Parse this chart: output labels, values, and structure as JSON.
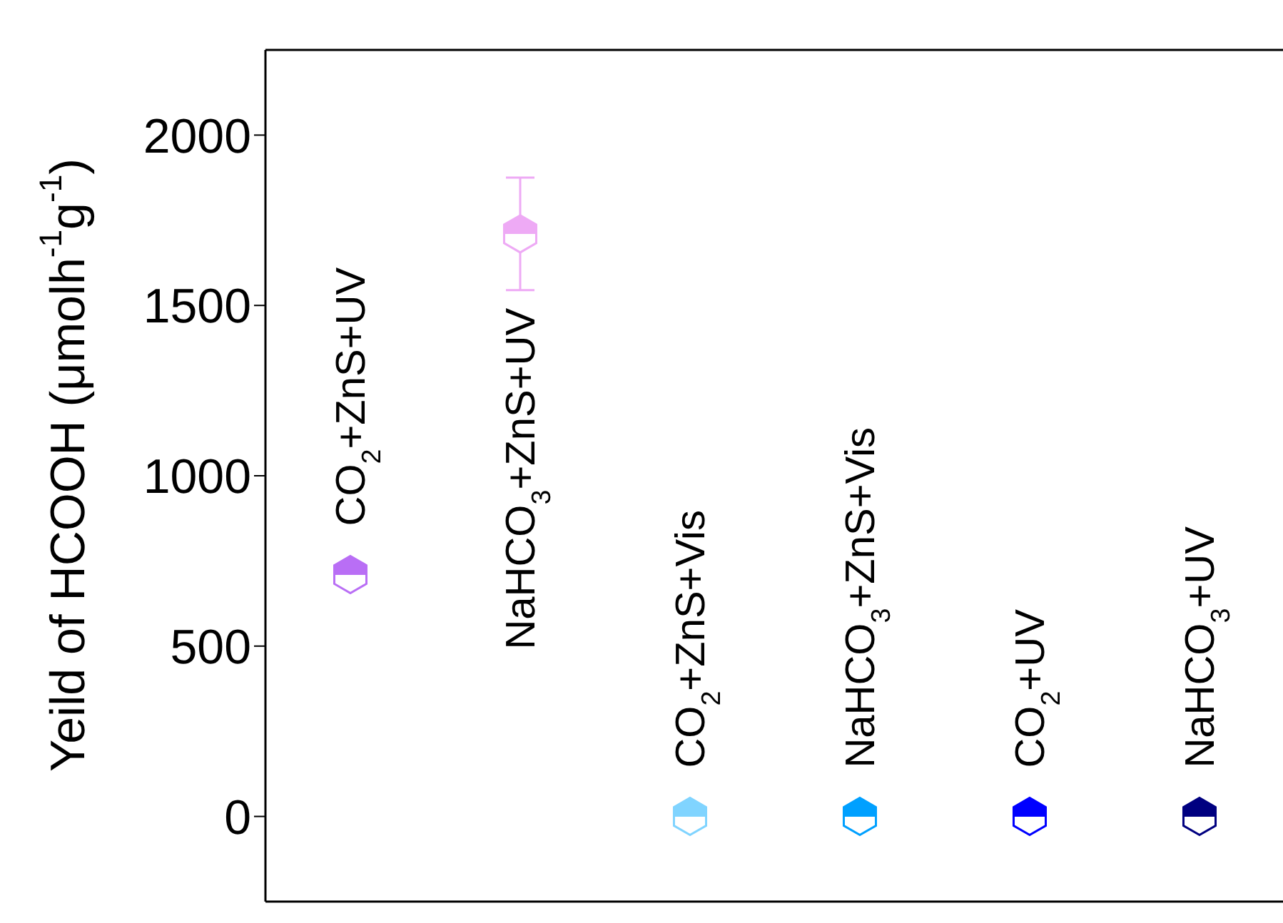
{
  "chart_data": {
    "type": "scatter",
    "ylabel": "Yeild of HCOOH (μmolh$^{-1}$g$^{-1}$)",
    "categories": [
      null,
      null,
      null,
      null,
      null,
      null
    ],
    "ylim": [
      -250,
      2250
    ],
    "yticks": [
      0,
      500,
      1000,
      1500,
      2000
    ],
    "tick_labels": "y",
    "grid": false,
    "legend": false,
    "series": [
      {
        "name": "CO$_{2}$+ZnS+UV",
        "color": "#b96ef5",
        "values": [
          710,
          null,
          null,
          null,
          null,
          null
        ]
      },
      {
        "name": "NaHCO$_{3}$+ZnS+UV",
        "color": "#eeaaf5",
        "values": [
          null,
          1710,
          null,
          null,
          null,
          null
        ],
        "errors": [
          null,
          165,
          null,
          null,
          null,
          null
        ]
      },
      {
        "name": "CO$_{2}$+ZnS+Vis",
        "color": "#80d4ff",
        "values": [
          null,
          null,
          0,
          null,
          null,
          null
        ]
      },
      {
        "name": "NaHCO$_{3}$+ZnS+Vis",
        "color": "#00a0ff",
        "values": [
          null,
          null,
          null,
          0,
          null,
          null
        ]
      },
      {
        "name": "CO$_{2}$+UV",
        "color": "#0000ff",
        "values": [
          null,
          null,
          null,
          null,
          0,
          null
        ]
      },
      {
        "name": "NaHCO$_{3}$+UV",
        "color": "#000080",
        "values": [
          null,
          null,
          null,
          null,
          null,
          0
        ]
      }
    ]
  }
}
